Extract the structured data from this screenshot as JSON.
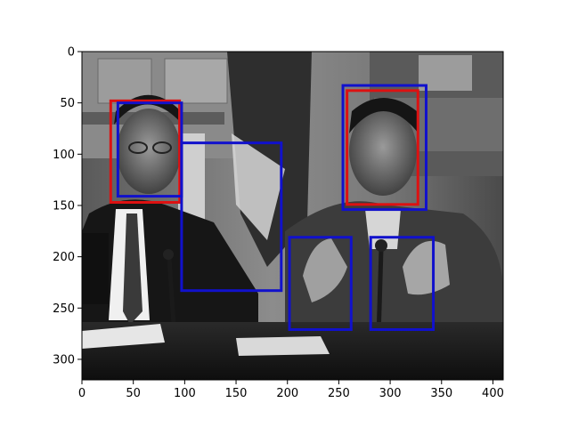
{
  "chart_data": {
    "type": "image_with_boxes",
    "image": {
      "description_name": "grayscale-photo-two-men-at-table-with-microphones",
      "width": 410,
      "height": 320
    },
    "x_ticks": [
      0,
      50,
      100,
      150,
      200,
      250,
      300,
      350,
      400
    ],
    "y_ticks": [
      0,
      50,
      100,
      150,
      200,
      250,
      300
    ],
    "xlim": [
      0,
      410
    ],
    "ylim": [
      320,
      0
    ],
    "boxes": [
      {
        "id": "box-1",
        "color": "#dd1111",
        "x1": 28,
        "y1": 48,
        "x2": 95,
        "y2": 147
      },
      {
        "id": "box-2",
        "color": "#dd1111",
        "x1": 258,
        "y1": 38,
        "x2": 327,
        "y2": 149
      },
      {
        "id": "box-3",
        "color": "#1111cc",
        "x1": 35,
        "y1": 50,
        "x2": 97,
        "y2": 141
      },
      {
        "id": "box-4",
        "color": "#1111cc",
        "x1": 254,
        "y1": 33,
        "x2": 335,
        "y2": 154
      },
      {
        "id": "box-5",
        "color": "#1111cc",
        "x1": 97,
        "y1": 89,
        "x2": 194,
        "y2": 233
      },
      {
        "id": "box-6",
        "color": "#1111cc",
        "x1": 202,
        "y1": 181,
        "x2": 262,
        "y2": 271
      },
      {
        "id": "box-7",
        "color": "#1111cc",
        "x1": 281,
        "y1": 181,
        "x2": 342,
        "y2": 271
      }
    ]
  }
}
